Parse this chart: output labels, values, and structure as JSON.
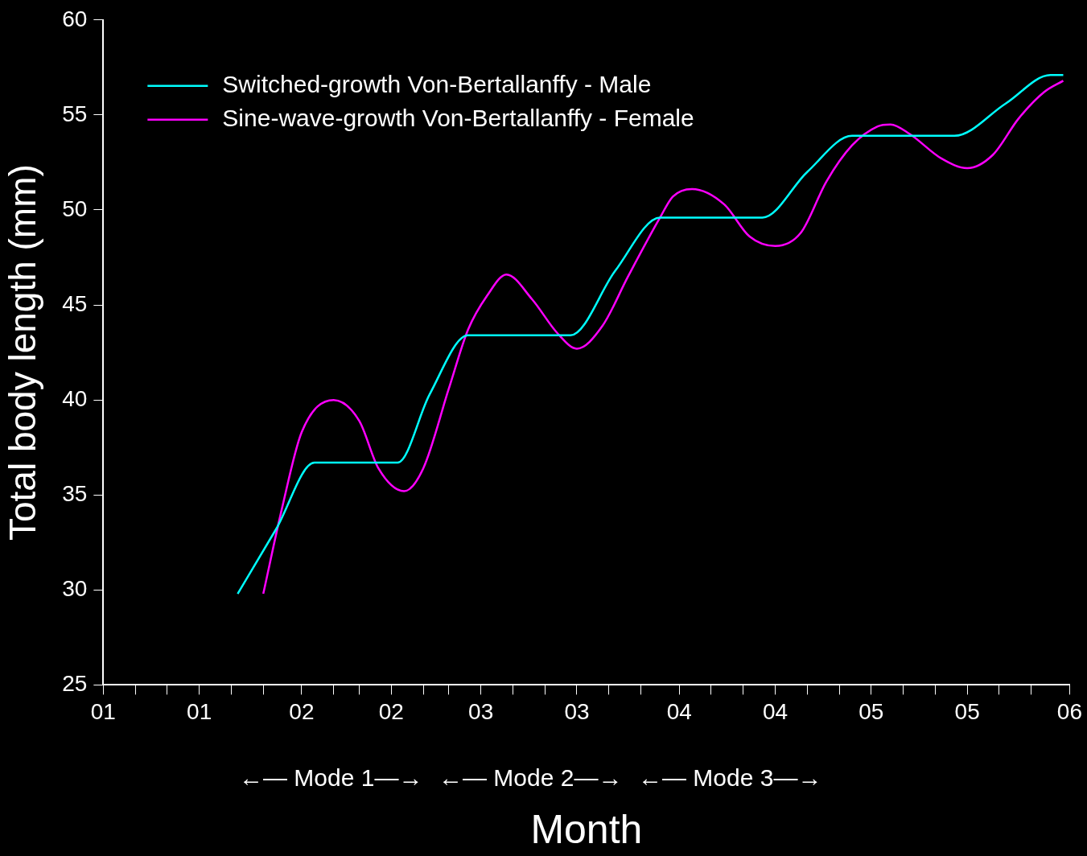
{
  "chart_data": {
    "type": "line",
    "xlabel": "Month",
    "ylabel": "Total body length (mm)",
    "annotations": [
      "←— Mode 1—→",
      "←— Mode 2—→",
      "←— Mode 3—→"
    ],
    "xlim": [
      "--01-01",
      "--06-01"
    ],
    "ylim": [
      25,
      60
    ],
    "xticks": [
      {
        "value": "--01-01",
        "label": "01"
      },
      {
        "value": "--01-06",
        "label": null
      },
      {
        "value": "--01-11",
        "label": null
      },
      {
        "value": "--01-16",
        "label": "01"
      },
      {
        "value": "--01-21",
        "label": null
      },
      {
        "value": "--01-26",
        "label": null
      },
      {
        "value": "--02-01",
        "label": "02"
      },
      {
        "value": "--02-06",
        "label": null
      },
      {
        "value": "--02-10",
        "label": null
      },
      {
        "value": "--02-15",
        "label": "02"
      },
      {
        "value": "--02-20",
        "label": null
      },
      {
        "value": "--02-24",
        "label": null
      },
      {
        "value": "--03-01",
        "label": "03"
      },
      {
        "value": "--03-06",
        "label": null
      },
      {
        "value": "--03-11",
        "label": null
      },
      {
        "value": "--03-16",
        "label": "03"
      },
      {
        "value": "--03-21",
        "label": null
      },
      {
        "value": "--03-26",
        "label": null
      },
      {
        "value": "--04-01",
        "label": "04"
      },
      {
        "value": "--04-06",
        "label": null
      },
      {
        "value": "--04-11",
        "label": null
      },
      {
        "value": "--04-16",
        "label": "04"
      },
      {
        "value": "--04-21",
        "label": null
      },
      {
        "value": "--04-26",
        "label": null
      },
      {
        "value": "--05-01",
        "label": "05"
      },
      {
        "value": "--05-06",
        "label": null
      },
      {
        "value": "--05-11",
        "label": null
      },
      {
        "value": "--05-16",
        "label": "05"
      },
      {
        "value": "--05-21",
        "label": null
      },
      {
        "value": "--05-26",
        "label": null
      },
      {
        "value": "--06-01",
        "label": "06"
      }
    ],
    "yticks": [
      25,
      30,
      35,
      40,
      45,
      50,
      55,
      60
    ],
    "grid": false,
    "legend": "top left",
    "marker": "none",
    "line_style": "solid",
    "series": [
      {
        "name": "Switched-growth Von-Bertallanffy - Male",
        "color": "#00ffff",
        "x": [
          "--01-22",
          "--01-28",
          "--02-03",
          "--02-16",
          "--02-21",
          "--02-27",
          "--03-15",
          "--03-22",
          "--03-29",
          "--04-14",
          "--04-21",
          "--04-28",
          "--05-14",
          "--05-22",
          "--05-29",
          "--05-31"
        ],
        "values": [
          29.8,
          33.2,
          36.7,
          36.7,
          40.3,
          43.4,
          43.4,
          46.8,
          49.6,
          49.6,
          52.0,
          53.9,
          53.9,
          55.6,
          57.1,
          57.1
        ]
      },
      {
        "name": "Sine-wave-growth Von-Bertallanffy - Female",
        "color": "#ff00ff",
        "x": [
          "--01-26",
          "--01-29",
          "--02-01",
          "--02-06",
          "--02-10",
          "--02-13",
          "--02-17",
          "--02-20",
          "--02-24",
          "--02-27",
          "--03-02",
          "--03-05",
          "--03-09",
          "--03-13",
          "--03-16",
          "--03-20",
          "--03-24",
          "--03-29",
          "--03-31",
          "--04-03",
          "--04-08",
          "--04-12",
          "--04-16",
          "--04-20",
          "--04-24",
          "--04-28",
          "--05-02",
          "--05-04",
          "--05-07",
          "--05-12",
          "--05-16",
          "--05-20",
          "--05-24",
          "--05-28",
          "--05-31"
        ],
        "values": [
          29.8,
          34.4,
          38.3,
          40.0,
          38.9,
          36.4,
          35.2,
          36.4,
          40.6,
          43.7,
          45.5,
          46.6,
          45.3,
          43.5,
          42.7,
          43.9,
          46.5,
          49.6,
          50.7,
          51.1,
          50.3,
          48.6,
          48.1,
          48.8,
          51.5,
          53.4,
          54.4,
          54.5,
          54.0,
          52.7,
          52.2,
          52.9,
          54.8,
          56.2,
          56.8
        ]
      }
    ]
  }
}
